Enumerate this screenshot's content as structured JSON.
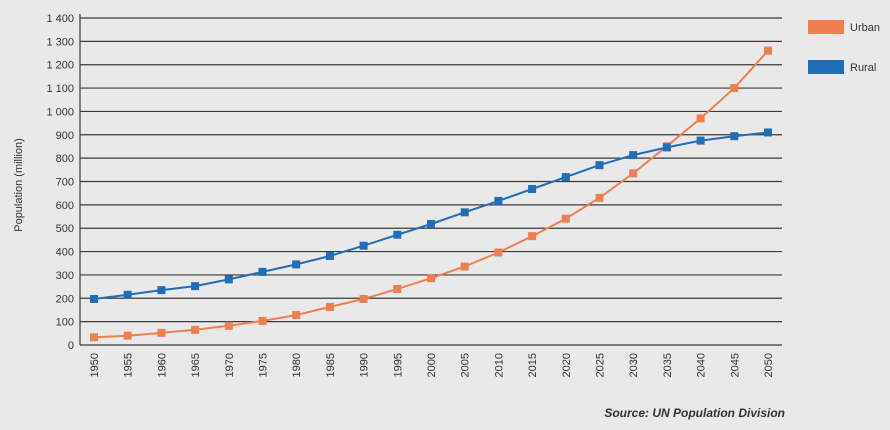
{
  "chart_data": {
    "type": "line",
    "title": "",
    "xlabel": "",
    "ylabel": "Population (million)",
    "x": [
      1950,
      1955,
      1960,
      1965,
      1970,
      1975,
      1980,
      1985,
      1990,
      1995,
      2000,
      2005,
      2010,
      2015,
      2020,
      2025,
      2030,
      2035,
      2040,
      2045,
      2050
    ],
    "ylim": [
      0,
      1400
    ],
    "yticks": [
      0,
      100,
      200,
      300,
      400,
      500,
      600,
      700,
      800,
      900,
      1000,
      1100,
      1200,
      1300,
      1400
    ],
    "ytick_labels": [
      "0",
      "100",
      "200",
      "300",
      "400",
      "500",
      "600",
      "700",
      "800",
      "900",
      "1 000",
      "1 100",
      "1 200",
      "1 300",
      "1 400"
    ],
    "grid": true,
    "legend_position": "right",
    "series": [
      {
        "name": "Urban",
        "color": "#f07f4f",
        "values": [
          33,
          40,
          52,
          65,
          82,
          103,
          128,
          163,
          197,
          240,
          286,
          336,
          396,
          466,
          541,
          630,
          735,
          851,
          970,
          1100,
          1260
        ]
      },
      {
        "name": "Rural",
        "color": "#1f6eb7",
        "values": [
          197,
          215,
          235,
          252,
          281,
          313,
          345,
          381,
          425,
          472,
          518,
          568,
          617,
          668,
          719,
          770,
          813,
          846,
          875,
          894,
          910
        ]
      }
    ],
    "source": "Source: UN Population Division"
  }
}
